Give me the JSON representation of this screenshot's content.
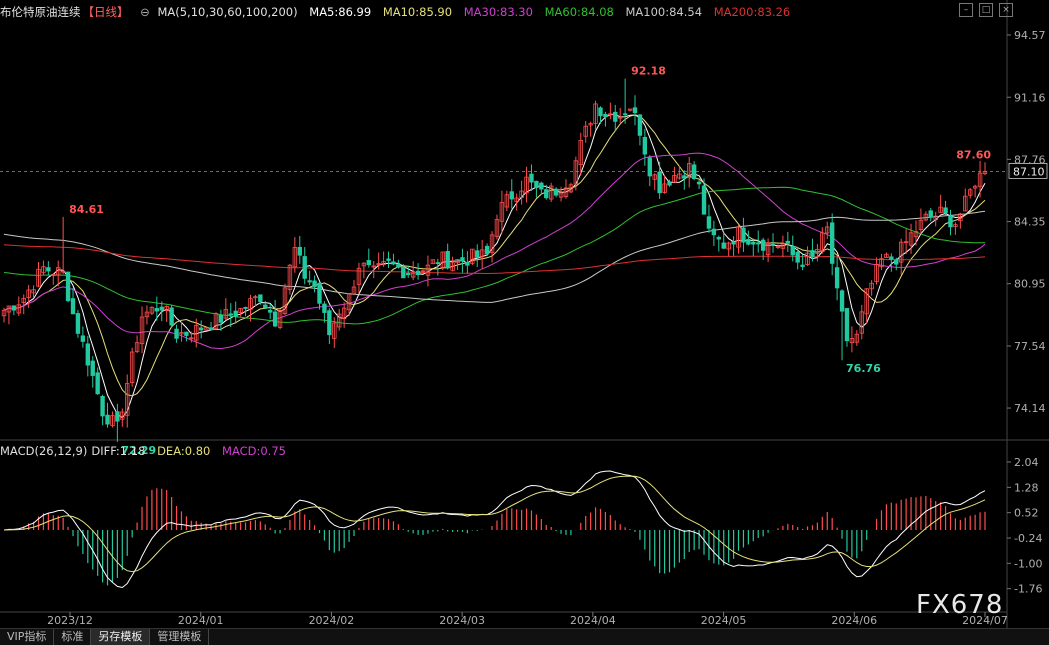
{
  "header": {
    "title": "布伦特原油连续",
    "period": "【日线】",
    "ma_params": "MA(5,10,30,60,100,200)",
    "ma_values": [
      {
        "label": "MA5:86.99",
        "color": "#ffffff"
      },
      {
        "label": "MA10:85.90",
        "color": "#e6e07a"
      },
      {
        "label": "MA30:83.30",
        "color": "#d040d0"
      },
      {
        "label": "MA60:84.08",
        "color": "#30c030"
      },
      {
        "label": "MA100:84.54",
        "color": "#c8c8c8"
      },
      {
        "label": "MA200:83.26",
        "color": "#e03030"
      }
    ]
  },
  "macd_header": {
    "params": "MACD(26,12,9)",
    "diff": "DIFF:1.18",
    "dea": "DEA:0.80",
    "macd": "MACD:0.75"
  },
  "tabs": [
    "VIP指标",
    "标准",
    "另存模板",
    "管理模板"
  ],
  "watermark": "FX678",
  "colors": {
    "up": "#ff4d4d",
    "down": "#22c9a0",
    "dash": "#ff6060",
    "axis_text": "#b0b0b0"
  },
  "chart_data": [
    {
      "type": "candlestick",
      "title": "布伦特原油连续",
      "x_ticks": [
        "2023/12",
        "2024/01",
        "2024/02",
        "2024/03",
        "2024/04",
        "2024/05",
        "2024/06",
        "2024/07"
      ],
      "y_ticks": [
        94.57,
        91.16,
        87.76,
        84.35,
        80.95,
        77.54,
        74.14
      ],
      "ylim": [
        72.5,
        95.5
      ],
      "last_price": 87.1,
      "annotations": [
        {
          "text": "92.18",
          "value": 92.18,
          "kind": "high",
          "index": 126
        },
        {
          "text": "84.61",
          "value": 84.61,
          "kind": "high",
          "index": 12
        },
        {
          "text": "72.29",
          "value": 72.29,
          "kind": "low",
          "index": 23
        },
        {
          "text": "76.76",
          "value": 76.76,
          "kind": "low",
          "index": 170
        },
        {
          "text": "87.60",
          "value": 87.6,
          "kind": "high",
          "index": 199
        }
      ],
      "close_anchors": [
        [
          0,
          79.5
        ],
        [
          4,
          80.2
        ],
        [
          8,
          81.8
        ],
        [
          12,
          81.5
        ],
        [
          14,
          79.3
        ],
        [
          17,
          76.8
        ],
        [
          20,
          74.0
        ],
        [
          23,
          73.0
        ],
        [
          26,
          76.8
        ],
        [
          28,
          79.2
        ],
        [
          32,
          79.8
        ],
        [
          35,
          78.2
        ],
        [
          38,
          78.3
        ],
        [
          42,
          78.8
        ],
        [
          45,
          79.2
        ],
        [
          48,
          79.5
        ],
        [
          52,
          80.3
        ],
        [
          55,
          79.0
        ],
        [
          57,
          80.8
        ],
        [
          59,
          82.8
        ],
        [
          61,
          81.4
        ],
        [
          63,
          80.8
        ],
        [
          66,
          78.2
        ],
        [
          68,
          79.5
        ],
        [
          70,
          80.2
        ],
        [
          72,
          82.0
        ],
        [
          75,
          81.5
        ],
        [
          78,
          82.0
        ],
        [
          82,
          81.6
        ],
        [
          86,
          81.8
        ],
        [
          88,
          82.3
        ],
        [
          92,
          82.2
        ],
        [
          95,
          82.4
        ],
        [
          98,
          82.5
        ],
        [
          100,
          84.8
        ],
        [
          103,
          85.8
        ],
        [
          106,
          86.6
        ],
        [
          109,
          85.8
        ],
        [
          112,
          86.1
        ],
        [
          115,
          86.8
        ],
        [
          117,
          88.5
        ],
        [
          120,
          90.8
        ],
        [
          122,
          90.3
        ],
        [
          125,
          90.2
        ],
        [
          127,
          90.7
        ],
        [
          129,
          89.4
        ],
        [
          131,
          87.3
        ],
        [
          133,
          86.3
        ],
        [
          136,
          86.9
        ],
        [
          139,
          87.3
        ],
        [
          141,
          86.2
        ],
        [
          143,
          83.6
        ],
        [
          146,
          83.1
        ],
        [
          149,
          83.7
        ],
        [
          152,
          83.4
        ],
        [
          155,
          83.1
        ],
        [
          158,
          83.1
        ],
        [
          161,
          82.2
        ],
        [
          164,
          82.3
        ],
        [
          167,
          83.9
        ],
        [
          169,
          80.3
        ],
        [
          171,
          77.9
        ],
        [
          173,
          78.0
        ],
        [
          175,
          80.3
        ],
        [
          178,
          82.2
        ],
        [
          181,
          82.4
        ],
        [
          184,
          83.6
        ],
        [
          187,
          84.5
        ],
        [
          190,
          84.8
        ],
        [
          193,
          84.3
        ],
        [
          195,
          85.3
        ],
        [
          197,
          86.6
        ],
        [
          199,
          87.1
        ]
      ],
      "ma_params": [
        5,
        10,
        30,
        60,
        100,
        200
      ],
      "ma_colors": [
        "#ffffff",
        "#e6e07a",
        "#d040d0",
        "#30c030",
        "#c8c8c8",
        "#e03030"
      ]
    },
    {
      "type": "macd",
      "params": [
        26,
        12,
        9
      ],
      "y_ticks": [
        2.04,
        1.28,
        0.52,
        -0.24,
        -1.0,
        -1.76
      ],
      "ylim": [
        -2.4,
        2.25
      ],
      "last": {
        "diff": 1.18,
        "dea": 0.8,
        "macd": 0.75
      }
    }
  ]
}
